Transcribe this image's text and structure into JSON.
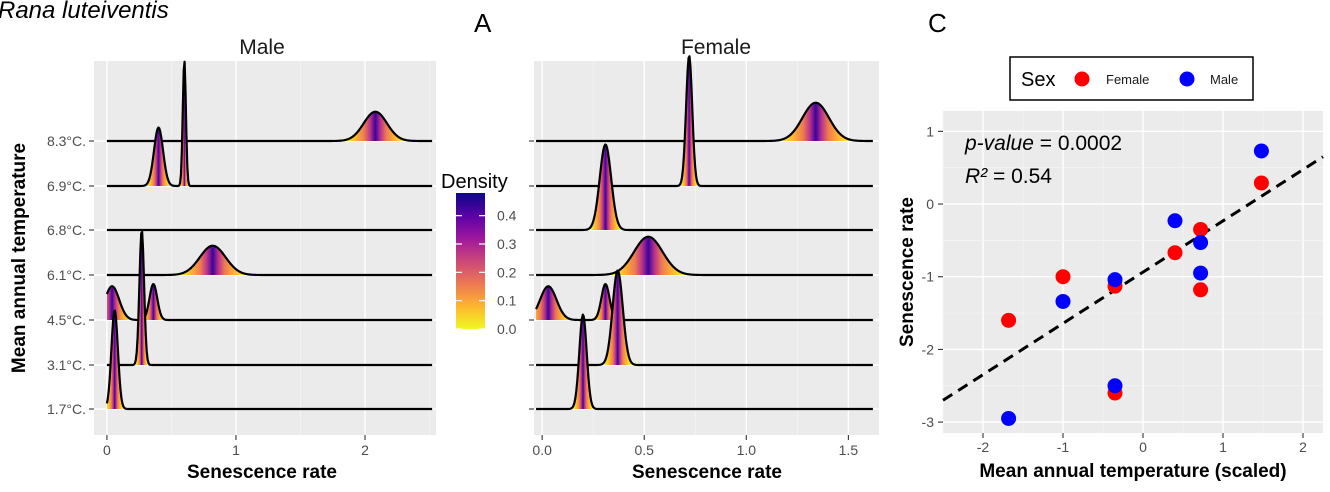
{
  "figure": {
    "species": "Rana luteiventis",
    "panel_labels": [
      "A",
      "C"
    ]
  },
  "colorbar": {
    "title": "Density",
    "ticks": [
      "0.4",
      "0.3",
      "0.2",
      "0.1",
      "0.0"
    ],
    "tick_values": [
      0.4,
      0.3,
      0.2,
      0.1,
      0.0
    ],
    "range": [
      0,
      0.48
    ],
    "colors": [
      "#0d0887",
      "#5c01a6",
      "#9c179e",
      "#cc4778",
      "#ed7953",
      "#fdb42f",
      "#f0f921"
    ]
  },
  "chart_data": [
    {
      "type": "area",
      "subtype": "ridgeline",
      "title": "Male",
      "xlabel": "Senescence rate",
      "ylabel": "Mean annual temperature",
      "xlim": [
        -0.1,
        2.55
      ],
      "xticks": [
        0,
        1,
        2
      ],
      "xtick_labels": [
        "0",
        "1",
        "2"
      ],
      "categories": [
        "1.7°C.",
        "3.1°C.",
        "4.5°C.",
        "6.1°C.",
        "6.8°C.",
        "6.9°C.",
        "8.3°C."
      ],
      "baseline_x": [
        0,
        2.52
      ],
      "series": [
        {
          "category": "1.7°C.",
          "peaks": [
            {
              "mean": 0.06,
              "sd": 0.025,
              "height": 2.2
            }
          ]
        },
        {
          "category": "3.1°C.",
          "peaks": [
            {
              "mean": 0.27,
              "sd": 0.018,
              "height": 3.0
            }
          ]
        },
        {
          "category": "4.5°C.",
          "peaks": [
            {
              "mean": 0.04,
              "sd": 0.055,
              "height": 0.75
            },
            {
              "mean": 0.36,
              "sd": 0.03,
              "height": 0.8
            }
          ]
        },
        {
          "category": "6.1°C.",
          "peaks": [
            {
              "mean": 0.82,
              "sd": 0.1,
              "height": 0.65
            }
          ]
        },
        {
          "category": "6.8°C.",
          "peaks": []
        },
        {
          "category": "6.9°C.",
          "peaks": [
            {
              "mean": 0.4,
              "sd": 0.035,
              "height": 1.3
            },
            {
              "mean": 0.6,
              "sd": 0.012,
              "height": 2.8
            }
          ]
        },
        {
          "category": "8.3°C.",
          "peaks": [
            {
              "mean": 2.08,
              "sd": 0.09,
              "height": 0.65
            }
          ]
        }
      ]
    },
    {
      "type": "area",
      "subtype": "ridgeline",
      "title": "Female",
      "xlabel": "Senescence rate",
      "xlim": [
        -0.04,
        1.65
      ],
      "xticks": [
        0,
        0.5,
        1,
        1.5
      ],
      "xtick_labels": [
        "0.0",
        "0.5",
        "1.0",
        "1.5"
      ],
      "categories": [
        "1.7°C.",
        "3.1°C.",
        "4.5°C.",
        "6.1°C.",
        "6.8°C.",
        "6.9°C.",
        "8.3°C."
      ],
      "baseline_x": [
        -0.03,
        1.62
      ],
      "series": [
        {
          "category": "1.7°C.",
          "peaks": [
            {
              "mean": 0.2,
              "sd": 0.018,
              "height": 2.1
            }
          ]
        },
        {
          "category": "3.1°C.",
          "peaks": [
            {
              "mean": 0.37,
              "sd": 0.025,
              "height": 2.1
            }
          ]
        },
        {
          "category": "4.5°C.",
          "peaks": [
            {
              "mean": 0.03,
              "sd": 0.04,
              "height": 0.75
            },
            {
              "mean": 0.31,
              "sd": 0.02,
              "height": 0.8
            }
          ]
        },
        {
          "category": "6.1°C.",
          "peaks": [
            {
              "mean": 0.52,
              "sd": 0.07,
              "height": 0.85
            }
          ]
        },
        {
          "category": "6.8°C.",
          "peaks": [
            {
              "mean": 0.31,
              "sd": 0.028,
              "height": 1.9
            }
          ]
        },
        {
          "category": "6.9°C.",
          "peaks": [
            {
              "mean": 0.72,
              "sd": 0.015,
              "height": 2.9
            }
          ]
        },
        {
          "category": "8.3°C.",
          "peaks": [
            {
              "mean": 1.34,
              "sd": 0.065,
              "height": 0.85
            }
          ]
        }
      ]
    },
    {
      "type": "scatter",
      "xlabel": "Mean annual temperature (scaled)",
      "ylabel": "Senescence rate",
      "xlim": [
        -2.5,
        2.25
      ],
      "ylim": [
        -3.15,
        1.28
      ],
      "xticks": [
        -2,
        -1,
        0,
        1,
        2
      ],
      "xtick_labels": [
        "-2",
        "-1",
        "0",
        "1",
        "2"
      ],
      "yticks": [
        1,
        0,
        -1,
        -2,
        -3
      ],
      "ytick_labels": [
        "1",
        "0",
        "-1",
        "-2",
        "-3"
      ],
      "legend": {
        "title": "Sex",
        "placement": "top",
        "entries": [
          "Female",
          "Male"
        ]
      },
      "annotations": {
        "p_label": "p-value",
        "p_value": "= 0.0002",
        "r2_label": "R²",
        "r2_value": "= 0.54"
      },
      "trendline": {
        "style": "dashed",
        "x": [
          -2.5,
          2.25
        ],
        "y": [
          -2.7,
          0.65
        ]
      },
      "series": [
        {
          "name": "Female",
          "color": "#ff0000",
          "points": [
            [
              -1.68,
              -1.6
            ],
            [
              -1.0,
              -1.0
            ],
            [
              -0.35,
              -1.13
            ],
            [
              -0.35,
              -2.6
            ],
            [
              0.4,
              -0.67
            ],
            [
              0.72,
              -0.35
            ],
            [
              0.72,
              -1.18
            ],
            [
              1.48,
              0.29
            ]
          ]
        },
        {
          "name": "Male",
          "color": "#0000ff",
          "points": [
            [
              -1.68,
              -2.95
            ],
            [
              -1.0,
              -1.34
            ],
            [
              -0.35,
              -1.04
            ],
            [
              -0.35,
              -2.5
            ],
            [
              0.4,
              -0.23
            ],
            [
              0.72,
              -0.53
            ],
            [
              0.72,
              -0.95
            ],
            [
              1.48,
              0.73
            ]
          ]
        }
      ]
    }
  ]
}
